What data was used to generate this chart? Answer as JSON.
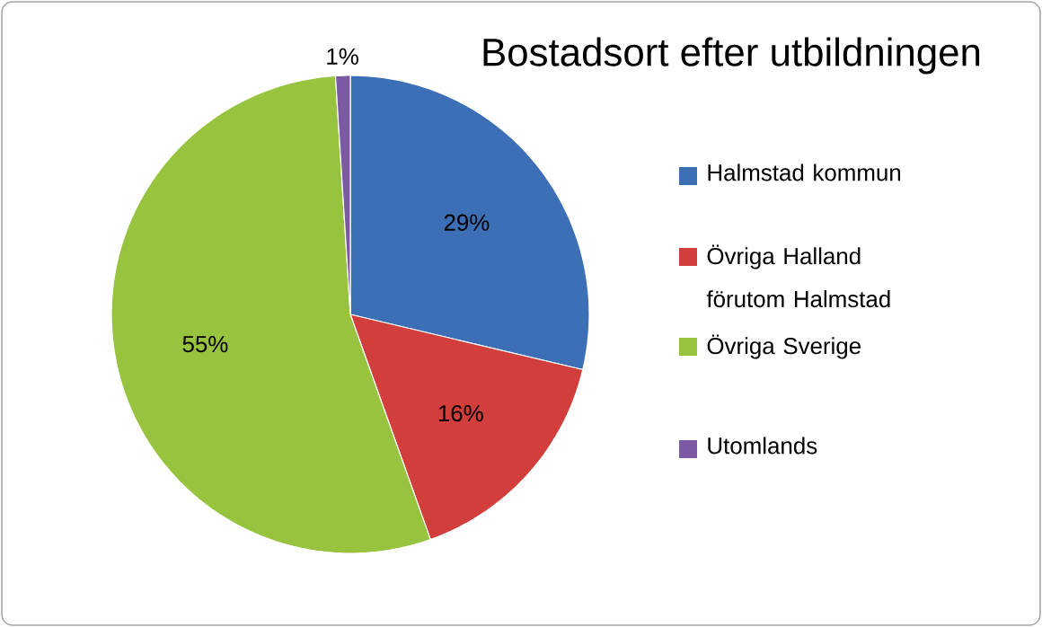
{
  "chart_data": {
    "type": "pie",
    "title": "Bostadsort efter utbildningen",
    "categories": [
      "Halmstad kommun",
      "Övriga Halland förutom Halmstad",
      "Övriga Sverige",
      "Utomlands"
    ],
    "values": [
      29,
      16,
      55,
      1
    ],
    "colors": [
      "#3d6fb6",
      "#d13e3b",
      "#98c33f",
      "#7b59a3"
    ],
    "value_labels": [
      "29%",
      "16%",
      "55%",
      "1%"
    ],
    "legend": "right"
  }
}
